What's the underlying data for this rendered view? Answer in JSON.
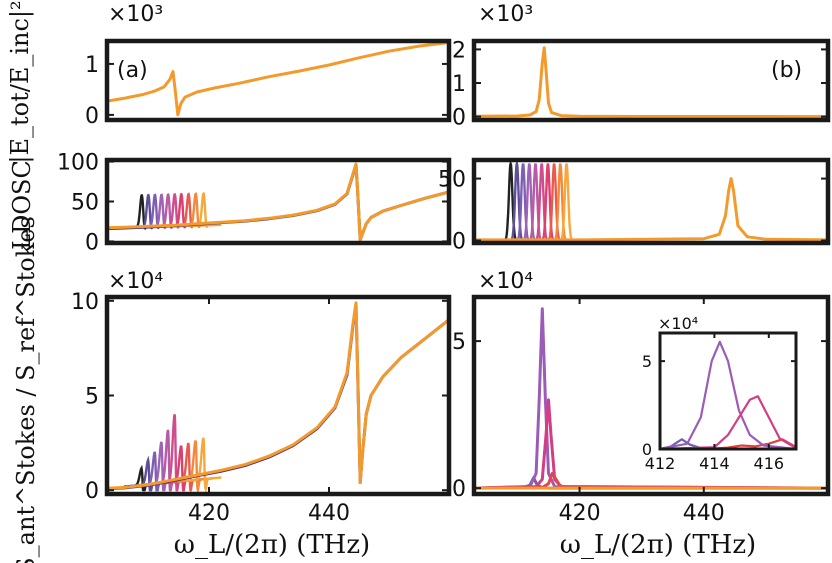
{
  "figure": {
    "panel_labels": [
      "(a)",
      "(b)"
    ],
    "ylabels": {
      "top": "|E_tot/E_inc|²",
      "middle": "LDOSC",
      "bottom": "S_ant^Stokes / S_ref^Stokes"
    },
    "xlabel": "ω_L/(2π) (THz)",
    "multipliers": {
      "top_a": "×10³",
      "top_b": "×10³",
      "bottom_a": "×10⁴",
      "bottom_b": "×10⁴",
      "inset": "×10⁴"
    }
  },
  "chart_data": [
    {
      "id": "a-top",
      "type": "line",
      "panel": "(a)",
      "ylabel": "|E_tot/E_inc|²",
      "multiplier": "×10³",
      "xlim": [
        403,
        460
      ],
      "ylim": [
        -0.1,
        1.45
      ],
      "xticks": [],
      "yticks": [
        0,
        1
      ],
      "series": [
        {
          "color": "#f39a2c",
          "x": [
            403,
            406,
            409,
            411,
            412.5,
            413.5,
            414,
            414.4,
            414.8,
            415.3,
            416,
            418,
            421,
            425,
            430,
            435,
            440,
            445,
            450,
            455,
            460
          ],
          "y": [
            0.27,
            0.33,
            0.4,
            0.47,
            0.55,
            0.7,
            0.85,
            0.45,
            0.0,
            0.22,
            0.35,
            0.45,
            0.53,
            0.62,
            0.75,
            0.86,
            0.98,
            1.12,
            1.25,
            1.35,
            1.42
          ]
        }
      ]
    },
    {
      "id": "b-top",
      "type": "line",
      "panel": "(b)",
      "ylabel": "|E_tot/E_inc|²",
      "multiplier": "×10³",
      "xlim": [
        403,
        460
      ],
      "ylim": [
        -0.1,
        2.25
      ],
      "xticks": [],
      "yticks": [
        0,
        1,
        2
      ],
      "series": [
        {
          "color": "#f39a2c",
          "x": [
            403,
            410,
            412,
            413,
            413.5,
            414,
            414.3,
            414.6,
            415,
            415.5,
            417,
            420,
            430,
            440,
            450,
            460
          ],
          "y": [
            0.01,
            0.02,
            0.05,
            0.15,
            0.5,
            1.6,
            2.05,
            1.4,
            0.4,
            0.12,
            0.03,
            0.01,
            0.005,
            0.004,
            0.003,
            0.002
          ]
        }
      ]
    },
    {
      "id": "a-mid",
      "type": "line",
      "panel": "(a)",
      "ylabel": "LDOSC",
      "xlim": [
        403,
        460
      ],
      "ylim": [
        -2,
        102
      ],
      "xticks": [],
      "yticks": [
        0,
        50,
        100
      ],
      "peak_series_colors": [
        "#222222",
        "#5d4f9a",
        "#7e5fb1",
        "#9d64b6",
        "#b85aa5",
        "#cf4c8d",
        "#dd3f6f",
        "#ea5a4a",
        "#f3893a",
        "#f6a83a"
      ],
      "peak_centers": [
        408.8,
        409.9,
        411.0,
        412.1,
        413.2,
        414.3,
        415.4,
        416.6,
        417.8,
        419.1
      ],
      "peak_height": 57,
      "series": [
        {
          "color": "#f39a2c",
          "x": [
            403,
            407,
            410,
            414,
            418,
            422,
            426,
            430,
            434,
            438,
            441,
            443,
            444,
            444.5,
            444.8,
            445.2,
            445.6,
            446.2,
            447,
            449,
            452,
            456,
            460
          ],
          "y": [
            17,
            18,
            19,
            20,
            22,
            24,
            26,
            29,
            33,
            39,
            47,
            60,
            85,
            97,
            60,
            2,
            10,
            22,
            30,
            38,
            45,
            54,
            62
          ]
        },
        {
          "color": "#4a2f6e",
          "x": [
            403,
            407,
            410,
            414,
            418,
            422,
            426,
            430,
            434,
            438,
            441,
            443,
            444,
            444.5,
            444.8,
            445.2,
            445.6,
            446.2,
            447,
            449,
            452,
            456,
            460
          ],
          "y": [
            16,
            17,
            18,
            19.5,
            21.5,
            23.5,
            25.5,
            28.5,
            32.5,
            38.5,
            46.5,
            59.5,
            84,
            96,
            59,
            2,
            10,
            22,
            30,
            38,
            45,
            54,
            62
          ]
        }
      ]
    },
    {
      "id": "b-mid",
      "type": "line",
      "panel": "(b)",
      "ylabel": "LDOSC",
      "xlim": [
        403,
        460
      ],
      "ylim": [
        -2,
        65
      ],
      "xticks": [],
      "yticks": [
        0,
        50
      ],
      "peak_series_colors": [
        "#222222",
        "#5d4f9a",
        "#7e5fb1",
        "#9d64b6",
        "#b85aa5",
        "#cf4c8d",
        "#dd3f6f",
        "#ea5a4a",
        "#f3893a",
        "#f6a83a"
      ],
      "peak_centers": [
        408.9,
        409.9,
        410.9,
        411.9,
        412.9,
        413.9,
        414.9,
        415.9,
        416.9,
        417.9
      ],
      "peak_height": 62,
      "series": [
        {
          "color": "#f39a2c",
          "x": [
            403,
            420,
            440,
            442.5,
            443.5,
            444,
            444.4,
            444.8,
            445.5,
            447,
            450,
            460
          ],
          "y": [
            0.5,
            0.5,
            1.5,
            5,
            20,
            40,
            50,
            40,
            12,
            3,
            1,
            0.5
          ]
        }
      ]
    },
    {
      "id": "a-bot",
      "type": "line",
      "panel": "(a)",
      "ylabel": "S_ant^Stokes / S_ref^Stokes",
      "multiplier": "×10⁴",
      "xlim": [
        403,
        460
      ],
      "ylim": [
        -0.2,
        10.2
      ],
      "xticks": [
        420,
        440
      ],
      "yticks": [
        0,
        5,
        10
      ],
      "xlabel": "ω_L/(2π) (THz)",
      "peak_series_colors": [
        "#222222",
        "#5d4f9a",
        "#7e5fb1",
        "#9d64b6",
        "#b85aa5",
        "#cf4c8d",
        "#dd3f6f",
        "#ea5a4a",
        "#f3893a",
        "#f6a83a"
      ],
      "peak_centers": [
        408.8,
        409.9,
        411.0,
        412.1,
        413.2,
        414.3,
        415.4,
        416.6,
        417.8,
        419.1
      ],
      "peak_heights": [
        0.9,
        1.3,
        1.7,
        2.2,
        2.8,
        3.6,
        1.9,
        2.0,
        2.1,
        2.2
      ],
      "series": [
        {
          "color": "#f39a2c",
          "x": [
            403,
            406,
            410,
            414,
            418,
            422,
            426,
            430,
            434,
            438,
            441,
            443,
            444,
            444.5,
            444.8,
            445.2,
            445.6,
            446.2,
            447,
            449,
            452,
            456,
            460
          ],
          "y": [
            0.1,
            0.15,
            0.3,
            0.55,
            0.8,
            1.05,
            1.35,
            1.8,
            2.4,
            3.3,
            4.4,
            6.2,
            8.8,
            9.9,
            6.0,
            0.4,
            2.0,
            4.0,
            5.0,
            6.0,
            7.0,
            8.0,
            9.0
          ]
        },
        {
          "color": "#5a2f75",
          "x": [
            403,
            406,
            410,
            414,
            418,
            422,
            426,
            430,
            434,
            438,
            441,
            443,
            444,
            444.5,
            444.8,
            445.2,
            445.6,
            446.2,
            447,
            449,
            452,
            456,
            460
          ],
          "y": [
            0.08,
            0.12,
            0.27,
            0.5,
            0.76,
            1.0,
            1.3,
            1.75,
            2.35,
            3.25,
            4.35,
            6.1,
            8.7,
            9.8,
            5.9,
            0.4,
            2.0,
            4.0,
            5.0,
            6.0,
            7.0,
            8.0,
            9.0
          ]
        }
      ]
    },
    {
      "id": "b-bot",
      "type": "line",
      "panel": "(b)",
      "ylabel": "S_ant^Stokes / S_ref^Stokes",
      "multiplier": "×10⁴",
      "xlim": [
        403,
        460
      ],
      "ylim": [
        -0.2,
        6.5
      ],
      "xticks": [
        420,
        440
      ],
      "yticks": [
        0,
        5
      ],
      "xlabel": "ω_L/(2π) (THz)",
      "series": [
        {
          "color": "#6c63b0",
          "x": [
            403,
            411,
            412,
            412.6,
            413.2,
            414,
            415,
            420,
            460
          ],
          "y": [
            0,
            0.02,
            0.1,
            0.35,
            0.1,
            0.02,
            0,
            0,
            0
          ]
        },
        {
          "color": "#9b5cb8",
          "x": [
            403,
            412,
            413,
            413.5,
            414.0,
            414.5,
            415,
            416,
            460
          ],
          "y": [
            0,
            0.05,
            0.5,
            3.0,
            6.1,
            3.0,
            0.5,
            0.05,
            0
          ]
        },
        {
          "color": "#d13f82",
          "x": [
            403,
            413,
            414,
            414.6,
            415.0,
            415.4,
            416,
            417,
            460
          ],
          "y": [
            0,
            0.05,
            0.3,
            1.8,
            3.0,
            1.8,
            0.3,
            0.05,
            0
          ]
        },
        {
          "color": "#e0474e",
          "x": [
            403,
            414,
            415,
            415.6,
            416.2,
            416.8,
            417.5,
            460
          ],
          "y": [
            0,
            0.02,
            0.15,
            0.5,
            0.3,
            0.1,
            0.02,
            0
          ]
        },
        {
          "color": "#f39a2c",
          "x": [
            403,
            420,
            460
          ],
          "y": [
            0,
            0,
            0
          ]
        }
      ]
    },
    {
      "id": "b-inset",
      "type": "line",
      "panel": "(b) inset",
      "multiplier": "×10⁴",
      "xlim": [
        412,
        417
      ],
      "ylim": [
        0,
        6.6
      ],
      "xticks": [
        412,
        414,
        416
      ],
      "yticks": [
        0,
        5
      ],
      "series": [
        {
          "color": "#e23f3f",
          "x": [
            412,
            414,
            414.5,
            415,
            415.5,
            416,
            416.5,
            417
          ],
          "y": [
            0,
            0.03,
            0.08,
            0.2,
            0.15,
            0.3,
            0.55,
            0.1
          ]
        },
        {
          "color": "#6c63b0",
          "x": [
            412,
            412.4,
            412.8,
            413.1,
            413.5,
            414,
            417
          ],
          "y": [
            0,
            0.15,
            0.55,
            0.25,
            0.05,
            0,
            0
          ]
        },
        {
          "color": "#9b5cb8",
          "x": [
            412,
            413,
            413.5,
            413.9,
            414.2,
            414.5,
            414.9,
            415.3,
            415.8,
            417
          ],
          "y": [
            0,
            0.3,
            1.8,
            5.0,
            6.1,
            5.0,
            2.2,
            0.8,
            0.2,
            0
          ]
        },
        {
          "color": "#d13f82",
          "x": [
            412,
            414,
            414.5,
            414.9,
            415.3,
            415.6,
            416.0,
            416.4,
            417
          ],
          "y": [
            0,
            0.1,
            0.8,
            1.8,
            2.8,
            3.0,
            1.8,
            0.6,
            0.05
          ]
        }
      ]
    }
  ]
}
